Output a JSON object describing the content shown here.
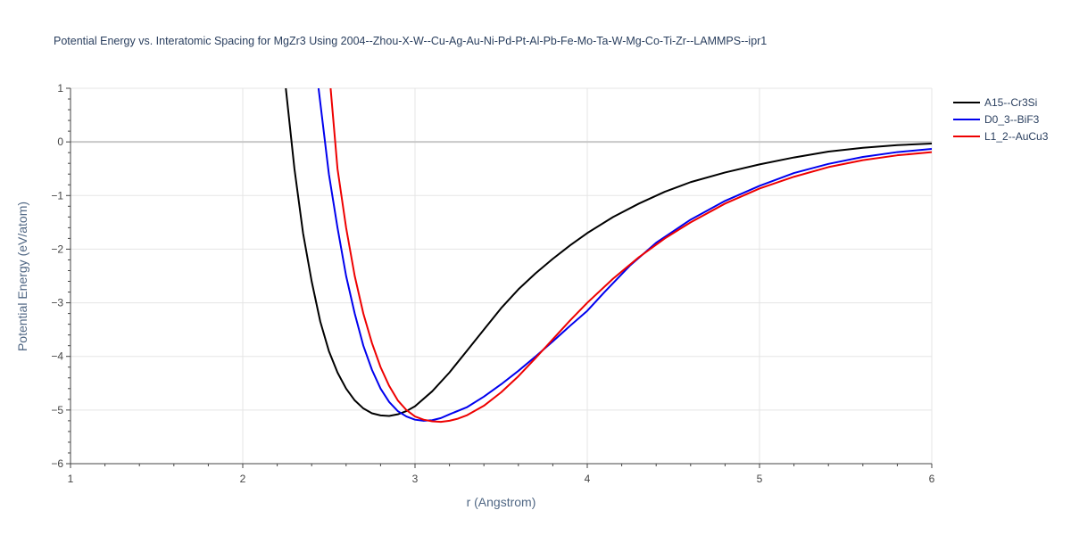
{
  "chart_data": {
    "type": "line",
    "title": "Potential Energy vs. Interatomic Spacing for MgZr3 Using 2004--Zhou-X-W--Cu-Ag-Au-Ni-Pd-Pt-Al-Pb-Fe-Mo-Ta-W-Mg-Co-Ti-Zr--LAMMPS--ipr1",
    "xlabel": "r (Angstrom)",
    "ylabel": "Potential Energy (eV/atom)",
    "xlim": [
      1,
      6
    ],
    "ylim": [
      -6,
      1
    ],
    "xticks": [
      1,
      2,
      3,
      4,
      5,
      6
    ],
    "yticks": [
      1,
      0,
      -1,
      -2,
      -3,
      -4,
      -5,
      -6
    ],
    "xtick_labels": [
      "1",
      "2",
      "3",
      "4",
      "5",
      "6"
    ],
    "ytick_labels": [
      "1",
      "0",
      "−1",
      "−2",
      "−3",
      "−4",
      "−5",
      "−6"
    ],
    "grid": true,
    "legend_position": "top-right",
    "series": [
      {
        "name": "A15--Cr3Si",
        "color": "#000000",
        "x": [
          2.25,
          2.3,
          2.35,
          2.4,
          2.45,
          2.5,
          2.55,
          2.6,
          2.65,
          2.7,
          2.75,
          2.8,
          2.85,
          2.9,
          2.95,
          3.0,
          3.1,
          3.2,
          3.3,
          3.4,
          3.5,
          3.6,
          3.7,
          3.8,
          3.9,
          4.0,
          4.15,
          4.3,
          4.45,
          4.6,
          4.8,
          5.0,
          5.2,
          5.4,
          5.6,
          5.8,
          6.0
        ],
        "y": [
          1.0,
          -0.5,
          -1.7,
          -2.6,
          -3.35,
          -3.9,
          -4.3,
          -4.6,
          -4.82,
          -4.97,
          -5.06,
          -5.1,
          -5.11,
          -5.08,
          -5.02,
          -4.93,
          -4.65,
          -4.3,
          -3.9,
          -3.5,
          -3.1,
          -2.75,
          -2.45,
          -2.18,
          -1.93,
          -1.7,
          -1.4,
          -1.15,
          -0.93,
          -0.75,
          -0.57,
          -0.42,
          -0.29,
          -0.18,
          -0.11,
          -0.06,
          -0.03
        ]
      },
      {
        "name": "D0_3--BiF3",
        "color": "#0000ee",
        "x": [
          2.44,
          2.5,
          2.55,
          2.6,
          2.65,
          2.7,
          2.75,
          2.8,
          2.85,
          2.9,
          2.95,
          3.0,
          3.05,
          3.1,
          3.15,
          3.2,
          3.3,
          3.4,
          3.5,
          3.6,
          3.7,
          3.8,
          3.9,
          4.0,
          4.1,
          4.25,
          4.4,
          4.6,
          4.8,
          5.0,
          5.2,
          5.4,
          5.6,
          5.8,
          6.0
        ],
        "y": [
          1.0,
          -0.6,
          -1.6,
          -2.5,
          -3.2,
          -3.8,
          -4.25,
          -4.6,
          -4.85,
          -5.02,
          -5.12,
          -5.18,
          -5.2,
          -5.19,
          -5.15,
          -5.08,
          -4.95,
          -4.75,
          -4.52,
          -4.27,
          -4.0,
          -3.72,
          -3.43,
          -3.15,
          -2.8,
          -2.3,
          -1.88,
          -1.45,
          -1.1,
          -0.82,
          -0.58,
          -0.41,
          -0.28,
          -0.19,
          -0.13
        ]
      },
      {
        "name": "L1_2--AuCu3",
        "color": "#ee0000",
        "x": [
          2.51,
          2.55,
          2.6,
          2.65,
          2.7,
          2.75,
          2.8,
          2.85,
          2.9,
          2.95,
          3.0,
          3.05,
          3.1,
          3.15,
          3.2,
          3.25,
          3.3,
          3.4,
          3.5,
          3.6,
          3.7,
          3.8,
          3.9,
          4.0,
          4.15,
          4.3,
          4.45,
          4.6,
          4.8,
          5.0,
          5.2,
          5.4,
          5.6,
          5.8,
          6.0
        ],
        "y": [
          1.0,
          -0.5,
          -1.6,
          -2.5,
          -3.2,
          -3.75,
          -4.2,
          -4.55,
          -4.82,
          -5.0,
          -5.12,
          -5.18,
          -5.21,
          -5.22,
          -5.2,
          -5.16,
          -5.1,
          -4.92,
          -4.67,
          -4.37,
          -4.03,
          -3.68,
          -3.33,
          -3.0,
          -2.55,
          -2.15,
          -1.8,
          -1.5,
          -1.15,
          -0.87,
          -0.65,
          -0.47,
          -0.34,
          -0.25,
          -0.19
        ]
      }
    ]
  }
}
